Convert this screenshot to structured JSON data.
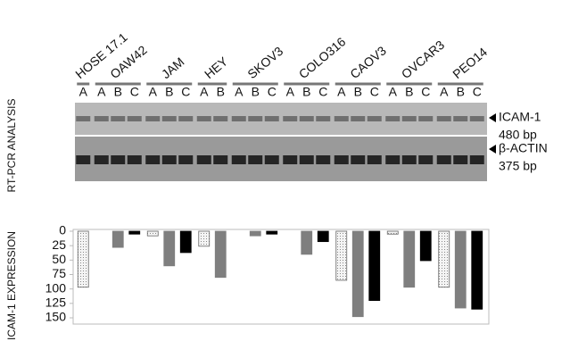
{
  "chart_data": {
    "type": "bar",
    "y_axis_label": "ICAM-1 EXPRESSION",
    "side_label": "RT-PCR ANALYSIS",
    "gel_labels": [
      "ICAM-1",
      "480 bp",
      "β-ACTIN",
      "375 bp"
    ],
    "ylim": [
      0,
      150
    ],
    "yticks": [
      0,
      25,
      50,
      75,
      100,
      125,
      150
    ],
    "inverted_y": true,
    "lane_colors": {
      "A": "#eeeeee",
      "B": "#7f7f7f",
      "C": "#000000"
    },
    "groups": [
      {
        "label": "HOSE 17.1",
        "lanes": [
          "A"
        ],
        "values": [
          97
        ]
      },
      {
        "label": "OAW42",
        "lanes": [
          "A",
          "B",
          "C"
        ],
        "values": [
          0,
          28,
          5
        ]
      },
      {
        "label": "JAM",
        "lanes": [
          "A",
          "B",
          "C"
        ],
        "values": [
          8,
          60,
          37
        ]
      },
      {
        "label": "HEY",
        "lanes": [
          "A",
          "B"
        ],
        "values": [
          26,
          80
        ]
      },
      {
        "label": "SKOV3",
        "lanes": [
          "A",
          "B",
          "C"
        ],
        "values": [
          0,
          8,
          5
        ]
      },
      {
        "label": "COLO316",
        "lanes": [
          "A",
          "B",
          "C"
        ],
        "values": [
          0,
          40,
          18
        ]
      },
      {
        "label": "CAOV3",
        "lanes": [
          "A",
          "B",
          "C"
        ],
        "values": [
          85,
          148,
          120
        ]
      },
      {
        "label": "OVCAR3",
        "lanes": [
          "A",
          "B",
          "C"
        ],
        "values": [
          5,
          97,
          51
        ]
      },
      {
        "label": "PEO14",
        "lanes": [
          "A",
          "B",
          "C"
        ],
        "values": [
          97,
          133,
          135
        ]
      }
    ]
  }
}
